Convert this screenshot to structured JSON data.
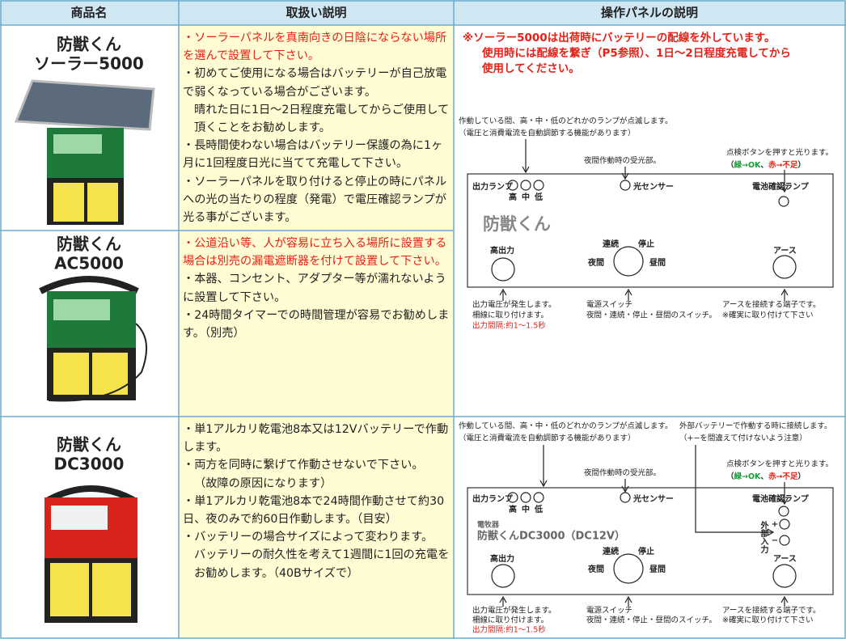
{
  "table": {
    "headers": [
      "商品名",
      "取扱い説明",
      "操作パネルの説明"
    ],
    "rows": [
      {
        "product": [
          "防獣くん",
          "ソーラー5000"
        ],
        "notes": [
          {
            "text": "・ソーラーパネルを真南向きの日陰にならない場所を選んで設置して下さい。",
            "color": "#e62117"
          },
          {
            "text": "・初めてご使用になる場合はバッテリーが自己放電で弱くなっている場合がございます。",
            "color": "#222222"
          },
          {
            "text": "晴れた日に1日～2日程度充電してからご使用して頂くことをお勧めします。",
            "color": "#222222"
          },
          {
            "text": "・長時間使わない場合はバッテリー保護の為に1ヶ月に1回程度日光に当てて充電して下さい。",
            "color": "#222222"
          },
          {
            "text": "・ソーラーパネルを取り付けると停止の時にパネルへの光の当たりの程度（発電）で電圧確認ランプが光る事がございます。",
            "color": "#222222"
          }
        ]
      },
      {
        "product": [
          "防獣くん",
          "AC5000"
        ],
        "notes": [
          {
            "text": "・公道沿い等、人が容易に立ち入る場所に設置する場合は別売の漏電遮断器を付けて設置して下さい。",
            "color": "#e62117"
          },
          {
            "text": "・本器、コンセント、アダプター等が濡れないように設置して下さい。",
            "color": "#222222"
          },
          {
            "text": "・24時間タイマーでの時間管理が容易でお勧めします。（別売）",
            "color": "#222222"
          }
        ]
      },
      {
        "product": [
          "防獣くん",
          "DC3000"
        ],
        "notes": [
          {
            "text": "・単1アルカリ乾電池8本又は12Vバッテリーで作動します。",
            "color": "#222222"
          },
          {
            "text": "・両方を同時に繋げて作動させないで下さい。",
            "color": "#222222"
          },
          {
            "text": "（故障の原因になります）",
            "color": "#222222"
          },
          {
            "text": "・単1アルカリ乾電池8本で24時間作動させて約30日、夜のみで約60日作動します。（目安）",
            "color": "#222222"
          },
          {
            "text": "・バッテリーの場合サイズによって変わります。",
            "color": "#222222"
          },
          {
            "text": "バッテリーの耐久性を考えて1週間に1回の充電をお勧めします。（40Bサイズで）",
            "color": "#222222"
          }
        ]
      }
    ]
  },
  "panels": [
    {
      "notice": [
        "※ソーラー5000は出荷時にバッテリーの配線を外しています。",
        "使用時には配線を繋ぎ（P5参照）、1日～2日程度充電してから",
        "使用してください。"
      ],
      "lamp_note": [
        "作動している間、高・中・低のどれかのランプが点滅します。",
        "（電圧と消費電流を自動調節する機能があります）"
      ],
      "sensor_note": "夜間作動時の受光部。",
      "check_note": [
        "点検ボタンを押すと光ります。",
        "（",
        "緑→OK",
        "、",
        "赤→不足",
        "）"
      ],
      "labels": {
        "output_lamp": "出力ランプ",
        "high": "高",
        "mid": "中",
        "low": "低",
        "sensor": "光センサー",
        "battery_lamp": "電池確認ランプ",
        "logo": "防獣くん",
        "output": "高出力",
        "continuous": "連続",
        "stop": "停止",
        "night": "夜間",
        "day": "昼間",
        "earth": "アース"
      },
      "bottom": {
        "output": [
          "出力電圧が発生します。",
          "柵線に取り付けます。",
          "出力間隔:約1～1.5秒"
        ],
        "switch": [
          "電源スイッチ",
          "夜間・連続・停止・昼間のスイッチ。"
        ],
        "earth": [
          "アースを接続する端子です。",
          "※確実に取り付けて下さい"
        ]
      }
    },
    {
      "lamp_note": [
        "作動している間、高・中・低のどれかのランプが点滅します。",
        "（電圧と消費電流を自動調節する機能があります）"
      ],
      "external_note": [
        "外部バッテリーで作動する時に接続します。",
        "（+−を間違えて付けないよう注意）"
      ],
      "sensor_note": "夜間作動時の受光部。",
      "check_note": [
        "点検ボタンを押すと光ります。",
        "（",
        "緑→OK",
        "、",
        "赤→不足",
        "）"
      ],
      "labels": {
        "output_lamp": "出力ランプ",
        "high": "高",
        "mid": "中",
        "low": "低",
        "sensor": "光センサー",
        "battery_lamp": "電池確認ランプ",
        "maker": "電牧器",
        "logo": "防獣くんDC3000（DC12V）",
        "external": "外部入力",
        "plus": "+",
        "minus": "−",
        "output": "高出力",
        "continuous": "連続",
        "stop": "停止",
        "night": "夜間",
        "day": "昼間",
        "earth": "アース"
      },
      "bottom": {
        "output": [
          "出力電圧が発生します。",
          "柵線に取り付けます。",
          "出力間隔:約1～1.5秒"
        ],
        "switch": [
          "電源スイッチ",
          "夜間・連続・停止・昼間のスイッチ。"
        ],
        "earth": [
          "アースを接続する端子です。",
          "※確実に取り付けて下さい"
        ]
      }
    }
  ]
}
